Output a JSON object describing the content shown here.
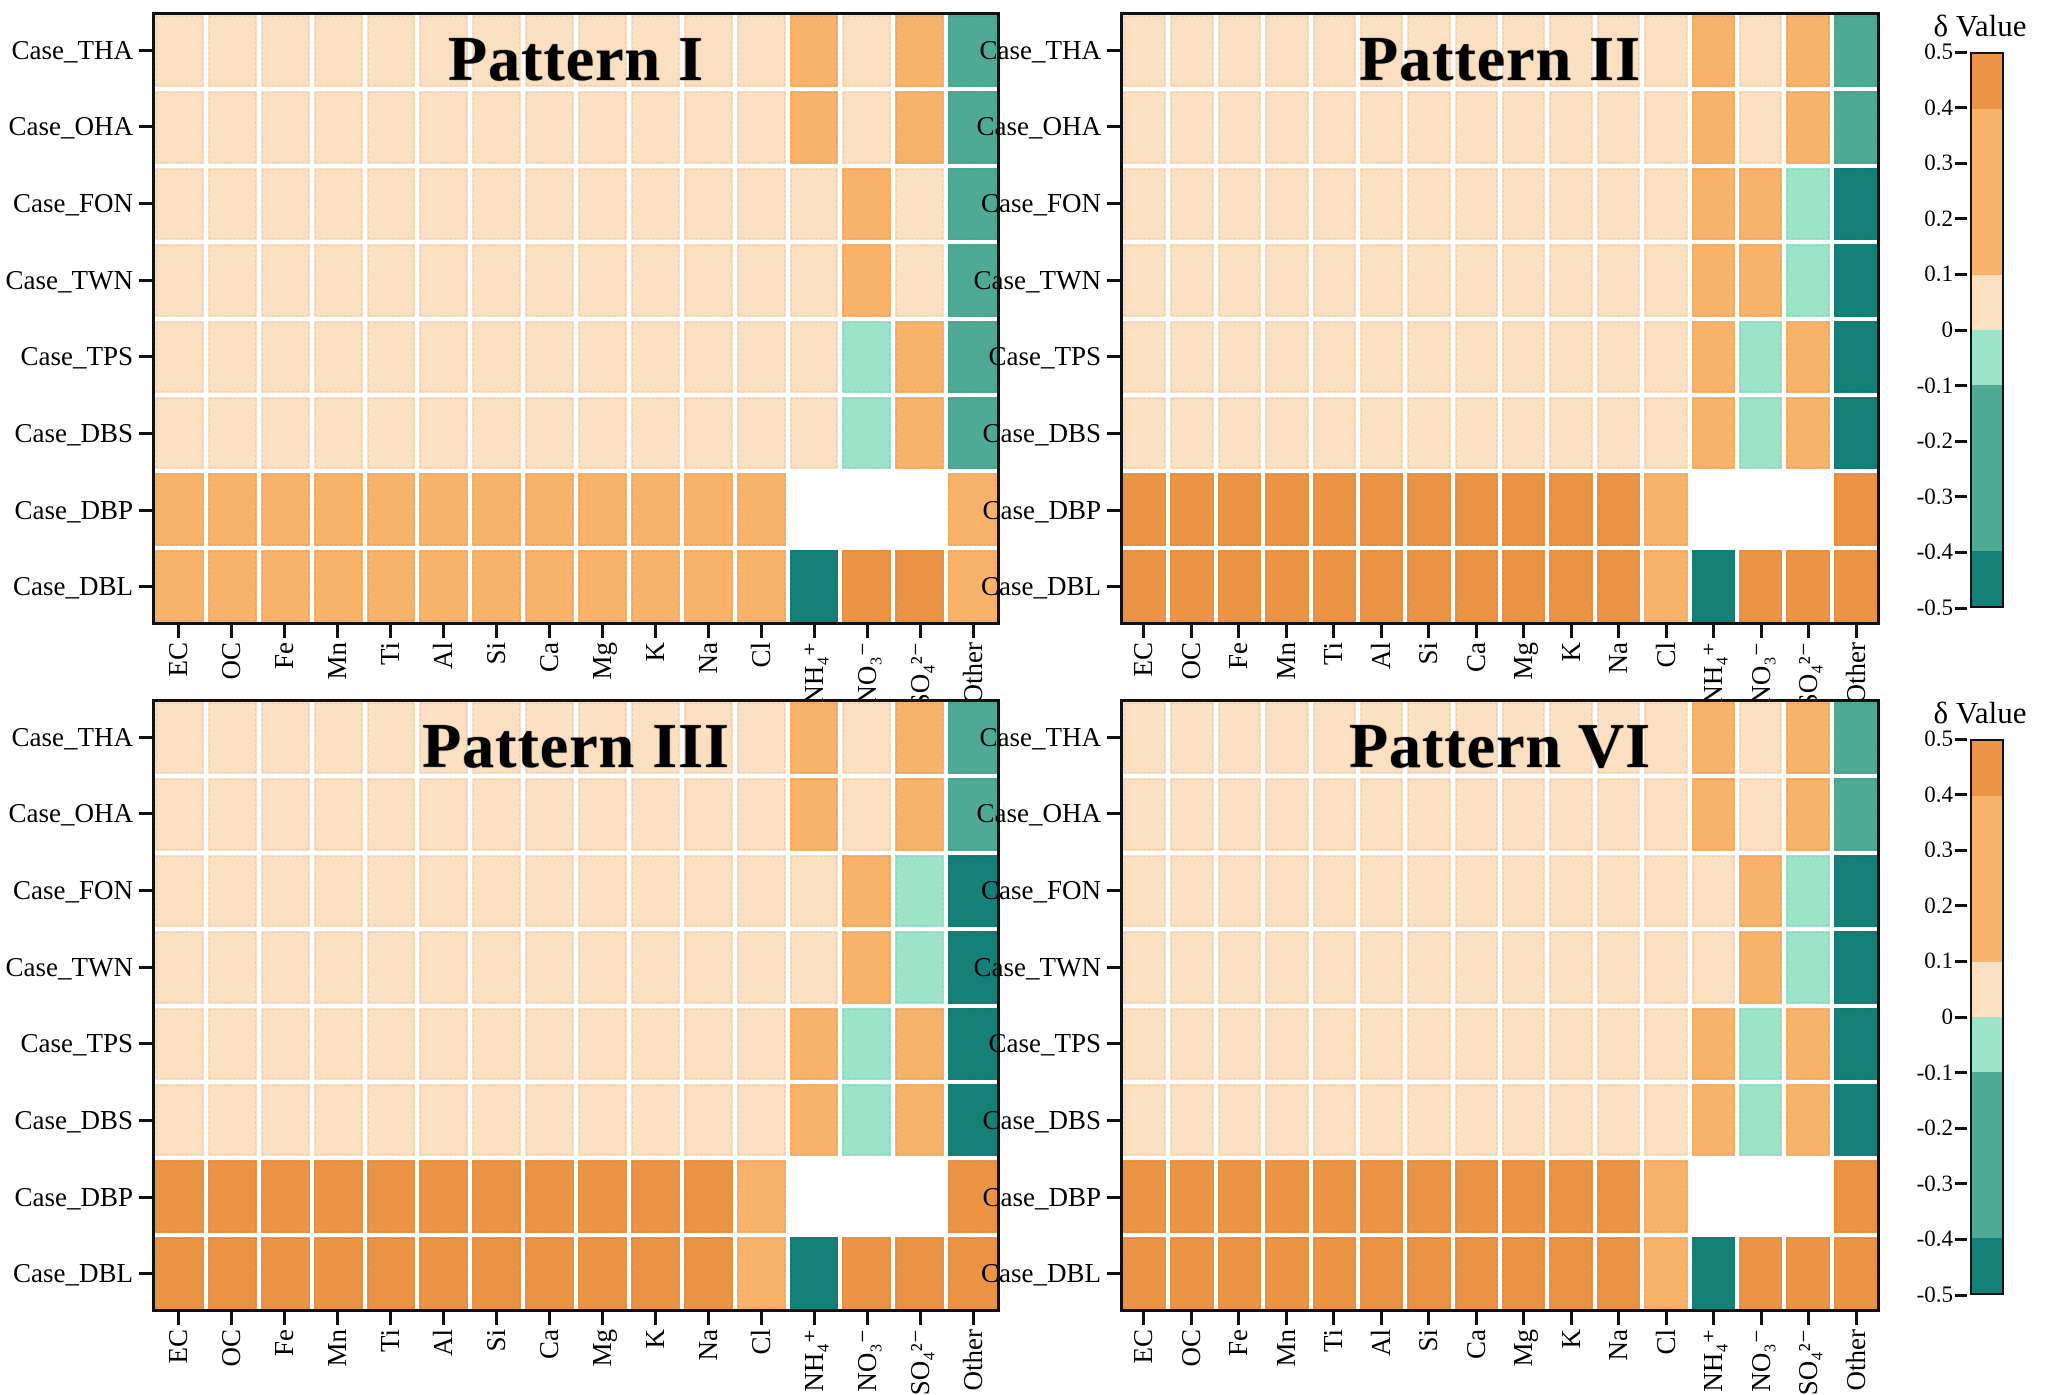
{
  "colorbar": {
    "title": "δ Value",
    "range": [
      0.5,
      -0.5
    ],
    "ticks": [
      "0.5",
      "0.4",
      "0.3",
      "0.2",
      "0.1",
      "0",
      "-0.1",
      "-0.2",
      "-0.3",
      "-0.4",
      "-0.5"
    ],
    "segments": [
      {
        "from": 0.5,
        "to": 0.4,
        "color": "#EC9445"
      },
      {
        "from": 0.4,
        "to": 0.1,
        "color": "#F9B269"
      },
      {
        "from": 0.1,
        "to": 0.0,
        "color": "#FBDFC1"
      },
      {
        "from": 0.0,
        "to": -0.1,
        "color": "#9BE3C9"
      },
      {
        "from": -0.1,
        "to": -0.4,
        "color": "#4FAA95"
      },
      {
        "from": -0.4,
        "to": -0.5,
        "color": "#158078"
      }
    ]
  },
  "chart_data": [
    {
      "type": "heatmap",
      "title": "Pattern I",
      "legend": "δ Value",
      "value_range": [
        -0.5,
        0.5
      ],
      "rows": [
        "Case_THA",
        "Case_OHA",
        "Case_FON",
        "Case_TWN",
        "Case_TPS",
        "Case_DBS",
        "Case_DBP",
        "Case_DBL"
      ],
      "columns": [
        "EC",
        "OC",
        "Fe",
        "Mn",
        "Ti",
        "Al",
        "Si",
        "Ca",
        "Mg",
        "K",
        "Na",
        "Cl",
        "NH₄⁺",
        "NO₃⁻",
        "SO₄²⁻",
        "Other"
      ],
      "values": [
        [
          0.05,
          0.05,
          0.05,
          0.05,
          0.05,
          0.05,
          0.05,
          0.05,
          0.05,
          0.05,
          0.05,
          0.05,
          0.25,
          0.05,
          0.25,
          -0.25
        ],
        [
          0.05,
          0.05,
          0.05,
          0.05,
          0.05,
          0.05,
          0.05,
          0.05,
          0.05,
          0.05,
          0.05,
          0.05,
          0.25,
          0.05,
          0.25,
          -0.25
        ],
        [
          0.05,
          0.05,
          0.05,
          0.05,
          0.05,
          0.05,
          0.05,
          0.05,
          0.05,
          0.05,
          0.05,
          0.05,
          0.05,
          0.25,
          0.05,
          -0.25
        ],
        [
          0.05,
          0.05,
          0.05,
          0.05,
          0.05,
          0.05,
          0.05,
          0.05,
          0.05,
          0.05,
          0.05,
          0.05,
          0.05,
          0.25,
          0.05,
          -0.25
        ],
        [
          0.05,
          0.05,
          0.05,
          0.05,
          0.05,
          0.05,
          0.05,
          0.05,
          0.05,
          0.05,
          0.05,
          0.05,
          0.05,
          -0.05,
          0.25,
          -0.25
        ],
        [
          0.05,
          0.05,
          0.05,
          0.05,
          0.05,
          0.05,
          0.05,
          0.05,
          0.05,
          0.05,
          0.05,
          0.05,
          0.05,
          -0.05,
          0.25,
          -0.25
        ],
        [
          0.25,
          0.25,
          0.25,
          0.25,
          0.25,
          0.25,
          0.25,
          0.25,
          0.25,
          0.25,
          0.25,
          0.25,
          null,
          null,
          null,
          0.25
        ],
        [
          0.25,
          0.25,
          0.25,
          0.25,
          0.25,
          0.25,
          0.25,
          0.25,
          0.25,
          0.25,
          0.25,
          0.25,
          -0.45,
          0.45,
          0.45,
          0.25
        ]
      ]
    },
    {
      "type": "heatmap",
      "title": "Pattern II",
      "legend": "δ Value",
      "value_range": [
        -0.5,
        0.5
      ],
      "rows": [
        "Case_THA",
        "Case_OHA",
        "Case_FON",
        "Case_TWN",
        "Case_TPS",
        "Case_DBS",
        "Case_DBP",
        "Case_DBL"
      ],
      "columns": [
        "EC",
        "OC",
        "Fe",
        "Mn",
        "Ti",
        "Al",
        "Si",
        "Ca",
        "Mg",
        "K",
        "Na",
        "Cl",
        "NH₄⁺",
        "NO₃⁻",
        "SO₄²⁻",
        "Other"
      ],
      "values": [
        [
          0.05,
          0.05,
          0.05,
          0.05,
          0.05,
          0.05,
          0.05,
          0.05,
          0.05,
          0.05,
          0.05,
          0.05,
          0.25,
          0.05,
          0.25,
          -0.25
        ],
        [
          0.05,
          0.05,
          0.05,
          0.05,
          0.05,
          0.05,
          0.05,
          0.05,
          0.05,
          0.05,
          0.05,
          0.05,
          0.25,
          0.05,
          0.25,
          -0.25
        ],
        [
          0.05,
          0.05,
          0.05,
          0.05,
          0.05,
          0.05,
          0.05,
          0.05,
          0.05,
          0.05,
          0.05,
          0.05,
          0.25,
          0.25,
          -0.05,
          -0.45
        ],
        [
          0.05,
          0.05,
          0.05,
          0.05,
          0.05,
          0.05,
          0.05,
          0.05,
          0.05,
          0.05,
          0.05,
          0.05,
          0.25,
          0.25,
          -0.05,
          -0.45
        ],
        [
          0.05,
          0.05,
          0.05,
          0.05,
          0.05,
          0.05,
          0.05,
          0.05,
          0.05,
          0.05,
          0.05,
          0.05,
          0.25,
          -0.05,
          0.25,
          -0.45
        ],
        [
          0.05,
          0.05,
          0.05,
          0.05,
          0.05,
          0.05,
          0.05,
          0.05,
          0.05,
          0.05,
          0.05,
          0.05,
          0.25,
          -0.05,
          0.25,
          -0.45
        ],
        [
          0.45,
          0.45,
          0.45,
          0.45,
          0.45,
          0.45,
          0.45,
          0.45,
          0.45,
          0.45,
          0.45,
          0.25,
          null,
          null,
          null,
          0.45
        ],
        [
          0.45,
          0.45,
          0.45,
          0.45,
          0.45,
          0.45,
          0.45,
          0.45,
          0.45,
          0.45,
          0.45,
          0.25,
          -0.45,
          0.45,
          0.45,
          0.45
        ]
      ]
    },
    {
      "type": "heatmap",
      "title": "Pattern III",
      "legend": "δ Value",
      "value_range": [
        -0.5,
        0.5
      ],
      "rows": [
        "Case_THA",
        "Case_OHA",
        "Case_FON",
        "Case_TWN",
        "Case_TPS",
        "Case_DBS",
        "Case_DBP",
        "Case_DBL"
      ],
      "columns": [
        "EC",
        "OC",
        "Fe",
        "Mn",
        "Ti",
        "Al",
        "Si",
        "Ca",
        "Mg",
        "K",
        "Na",
        "Cl",
        "NH₄⁺",
        "NO₃⁻",
        "SO₄²⁻",
        "Other"
      ],
      "values": [
        [
          0.05,
          0.05,
          0.05,
          0.05,
          0.05,
          0.05,
          0.05,
          0.05,
          0.05,
          0.05,
          0.05,
          0.05,
          0.25,
          0.05,
          0.25,
          -0.25
        ],
        [
          0.05,
          0.05,
          0.05,
          0.05,
          0.05,
          0.05,
          0.05,
          0.05,
          0.05,
          0.05,
          0.05,
          0.05,
          0.25,
          0.05,
          0.25,
          -0.25
        ],
        [
          0.05,
          0.05,
          0.05,
          0.05,
          0.05,
          0.05,
          0.05,
          0.05,
          0.05,
          0.05,
          0.05,
          0.05,
          0.05,
          0.25,
          -0.05,
          -0.45
        ],
        [
          0.05,
          0.05,
          0.05,
          0.05,
          0.05,
          0.05,
          0.05,
          0.05,
          0.05,
          0.05,
          0.05,
          0.05,
          0.05,
          0.25,
          -0.05,
          -0.45
        ],
        [
          0.05,
          0.05,
          0.05,
          0.05,
          0.05,
          0.05,
          0.05,
          0.05,
          0.05,
          0.05,
          0.05,
          0.05,
          0.25,
          -0.05,
          0.25,
          -0.45
        ],
        [
          0.05,
          0.05,
          0.05,
          0.05,
          0.05,
          0.05,
          0.05,
          0.05,
          0.05,
          0.05,
          0.05,
          0.05,
          0.25,
          -0.05,
          0.25,
          -0.45
        ],
        [
          0.45,
          0.45,
          0.45,
          0.45,
          0.45,
          0.45,
          0.45,
          0.45,
          0.45,
          0.45,
          0.45,
          0.25,
          null,
          null,
          null,
          0.45
        ],
        [
          0.45,
          0.45,
          0.45,
          0.45,
          0.45,
          0.45,
          0.45,
          0.45,
          0.45,
          0.45,
          0.45,
          0.25,
          -0.45,
          0.45,
          0.45,
          0.45
        ]
      ]
    },
    {
      "type": "heatmap",
      "title": "Pattern VI",
      "legend": "δ Value",
      "value_range": [
        -0.5,
        0.5
      ],
      "rows": [
        "Case_THA",
        "Case_OHA",
        "Case_FON",
        "Case_TWN",
        "Case_TPS",
        "Case_DBS",
        "Case_DBP",
        "Case_DBL"
      ],
      "columns": [
        "EC",
        "OC",
        "Fe",
        "Mn",
        "Ti",
        "Al",
        "Si",
        "Ca",
        "Mg",
        "K",
        "Na",
        "Cl",
        "NH₄⁺",
        "NO₃⁻",
        "SO₄²⁻",
        "Other"
      ],
      "values": [
        [
          0.05,
          0.05,
          0.05,
          0.05,
          0.05,
          0.05,
          0.05,
          0.05,
          0.05,
          0.05,
          0.05,
          0.05,
          0.25,
          0.05,
          0.25,
          -0.25
        ],
        [
          0.05,
          0.05,
          0.05,
          0.05,
          0.05,
          0.05,
          0.05,
          0.05,
          0.05,
          0.05,
          0.05,
          0.05,
          0.25,
          0.05,
          0.25,
          -0.25
        ],
        [
          0.05,
          0.05,
          0.05,
          0.05,
          0.05,
          0.05,
          0.05,
          0.05,
          0.05,
          0.05,
          0.05,
          0.05,
          0.05,
          0.25,
          -0.05,
          -0.45
        ],
        [
          0.05,
          0.05,
          0.05,
          0.05,
          0.05,
          0.05,
          0.05,
          0.05,
          0.05,
          0.05,
          0.05,
          0.05,
          0.05,
          0.25,
          -0.05,
          -0.45
        ],
        [
          0.05,
          0.05,
          0.05,
          0.05,
          0.05,
          0.05,
          0.05,
          0.05,
          0.05,
          0.05,
          0.05,
          0.05,
          0.25,
          -0.05,
          0.25,
          -0.45
        ],
        [
          0.05,
          0.05,
          0.05,
          0.05,
          0.05,
          0.05,
          0.05,
          0.05,
          0.05,
          0.05,
          0.05,
          0.05,
          0.25,
          -0.05,
          0.25,
          -0.45
        ],
        [
          0.45,
          0.45,
          0.45,
          0.45,
          0.45,
          0.45,
          0.45,
          0.45,
          0.45,
          0.45,
          0.45,
          0.25,
          null,
          null,
          null,
          0.45
        ],
        [
          0.45,
          0.45,
          0.45,
          0.45,
          0.45,
          0.45,
          0.45,
          0.45,
          0.45,
          0.45,
          0.45,
          0.25,
          -0.45,
          0.45,
          0.45,
          0.45
        ]
      ]
    }
  ]
}
